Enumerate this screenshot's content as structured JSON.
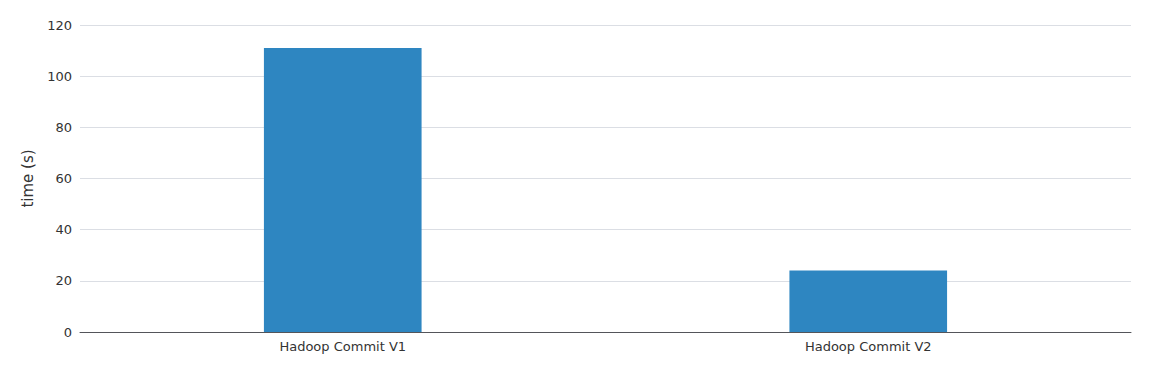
{
  "chart_data": {
    "type": "bar",
    "categories": [
      "Hadoop Commit V1",
      "Hadoop Commit V2"
    ],
    "values": [
      111,
      24
    ],
    "color": "#2e86c1",
    "ylabel": "time (s)",
    "ylim": [
      0,
      120
    ],
    "yticks": [
      0,
      20,
      40,
      60,
      80,
      100,
      120
    ],
    "grid": true
  }
}
